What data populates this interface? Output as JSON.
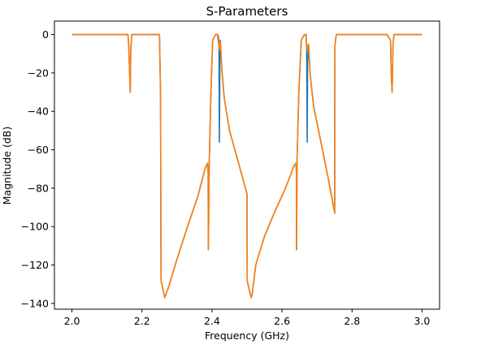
{
  "chart_data": {
    "type": "line",
    "title": "S-Parameters",
    "xlabel": "Frequency (GHz)",
    "ylabel": "Magnitude (dB)",
    "xlim": [
      1.95,
      3.05
    ],
    "ylim": [
      -143,
      7
    ],
    "xticks": [
      2.0,
      2.2,
      2.4,
      2.6,
      2.8,
      3.0
    ],
    "xtick_labels": [
      "2.0",
      "2.2",
      "2.4",
      "2.6",
      "2.8",
      "3.0"
    ],
    "yticks": [
      0,
      -20,
      -40,
      -60,
      -80,
      -100,
      -120,
      -140
    ],
    "ytick_labels": [
      "0",
      "−20",
      "−40",
      "−60",
      "−80",
      "−100",
      "−120",
      "−140"
    ],
    "grid": false,
    "series": [
      {
        "color": "#1f77b4",
        "x": [
          2.0,
          2.16,
          2.162,
          2.165,
          2.1665,
          2.168,
          2.171,
          2.25,
          2.253,
          2.2545,
          2.258,
          2.265,
          2.275,
          2.3,
          2.33,
          2.36,
          2.38,
          2.387,
          2.389,
          2.3895,
          2.3905,
          2.392,
          2.397,
          2.402,
          2.41,
          2.416,
          2.42,
          2.4212,
          2.4225,
          2.424,
          2.428,
          2.435,
          2.45,
          2.47,
          2.5,
          2.5005,
          2.505,
          2.512,
          2.515,
          2.525,
          2.55,
          2.58,
          2.61,
          2.635,
          2.6395,
          2.641,
          2.6415,
          2.643,
          2.648,
          2.655,
          2.664,
          2.669,
          2.6705,
          2.672,
          2.673,
          2.676,
          2.68,
          2.69,
          2.71,
          2.73,
          2.7505,
          2.751,
          2.755,
          2.9,
          2.91,
          2.912,
          2.9145,
          2.917,
          2.92,
          2.925,
          3.0
        ],
        "y": [
          0,
          0,
          -5,
          -21,
          -30,
          -8,
          0,
          0,
          -30,
          -128,
          -131,
          -137,
          -132,
          -117,
          -100,
          -84,
          -70,
          -67,
          -72,
          -112,
          -98,
          -68,
          -30,
          -3,
          0,
          0,
          -6,
          -56,
          -12,
          -3,
          -18,
          -33,
          -50,
          -63,
          -83,
          -128,
          -132,
          -137,
          -135,
          -120,
          -105,
          -92,
          -80,
          -68,
          -67,
          -71,
          -112,
          -65,
          -30,
          -3,
          0,
          0,
          -9,
          -56,
          -15,
          -5,
          -20,
          -37,
          -55,
          -73,
          -93,
          -6,
          0,
          0,
          -3,
          -20,
          -30,
          -5,
          0,
          0,
          0
        ]
      },
      {
        "color": "#ff7f0e",
        "x": [
          2.0,
          2.16,
          2.162,
          2.165,
          2.1665,
          2.168,
          2.171,
          2.25,
          2.253,
          2.2545,
          2.258,
          2.265,
          2.275,
          2.3,
          2.33,
          2.36,
          2.38,
          2.387,
          2.389,
          2.3895,
          2.3905,
          2.392,
          2.397,
          2.402,
          2.41,
          2.416,
          2.419,
          2.4212,
          2.424,
          2.428,
          2.435,
          2.45,
          2.47,
          2.5,
          2.5005,
          2.505,
          2.512,
          2.515,
          2.525,
          2.55,
          2.58,
          2.61,
          2.635,
          2.6395,
          2.641,
          2.6415,
          2.643,
          2.648,
          2.655,
          2.664,
          2.668,
          2.671,
          2.673,
          2.676,
          2.68,
          2.69,
          2.71,
          2.73,
          2.7505,
          2.751,
          2.755,
          2.9,
          2.91,
          2.912,
          2.9145,
          2.917,
          2.92,
          2.925,
          3.0
        ],
        "y": [
          0,
          0,
          -5,
          -21,
          -30,
          -8,
          0,
          0,
          -30,
          -128,
          -131,
          -137,
          -132,
          -117,
          -100,
          -84,
          -70,
          -67,
          -72,
          -112,
          -98,
          -68,
          -30,
          -3,
          0,
          0,
          -1,
          -8,
          -4,
          -18,
          -33,
          -50,
          -63,
          -83,
          -128,
          -132,
          -137,
          -135,
          -120,
          -105,
          -92,
          -80,
          -68,
          -67,
          -71,
          -112,
          -65,
          -30,
          -3,
          0,
          0,
          -8,
          -6,
          -5,
          -20,
          -37,
          -55,
          -73,
          -93,
          -6,
          0,
          0,
          -3,
          -20,
          -30,
          -5,
          0,
          0,
          0
        ]
      }
    ]
  }
}
